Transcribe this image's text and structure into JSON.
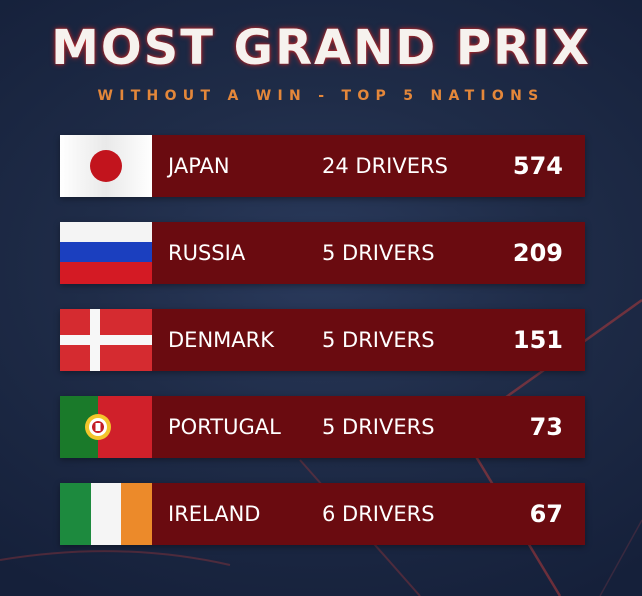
{
  "header": {
    "title": "MOST GRAND PRIX",
    "subtitle": "WITHOUT A WIN - TOP 5 NATIONS"
  },
  "colors": {
    "row_background": "#6a0b10",
    "subtitle": "#e4873a",
    "title_glow": "#c82828"
  },
  "nations": [
    {
      "country": "JAPAN",
      "drivers": "24 DRIVERS",
      "count": "574",
      "flag_icon": "japan-flag-icon"
    },
    {
      "country": "RUSSIA",
      "drivers": "5 DRIVERS",
      "count": "209",
      "flag_icon": "russia-flag-icon"
    },
    {
      "country": "DENMARK",
      "drivers": "5 DRIVERS",
      "count": "151",
      "flag_icon": "denmark-flag-icon"
    },
    {
      "country": "PORTUGAL",
      "drivers": "5 DRIVERS",
      "count": "73",
      "flag_icon": "portugal-flag-icon"
    },
    {
      "country": "IRELAND",
      "drivers": "6 DRIVERS",
      "count": "67",
      "flag_icon": "ireland-flag-icon"
    }
  ]
}
